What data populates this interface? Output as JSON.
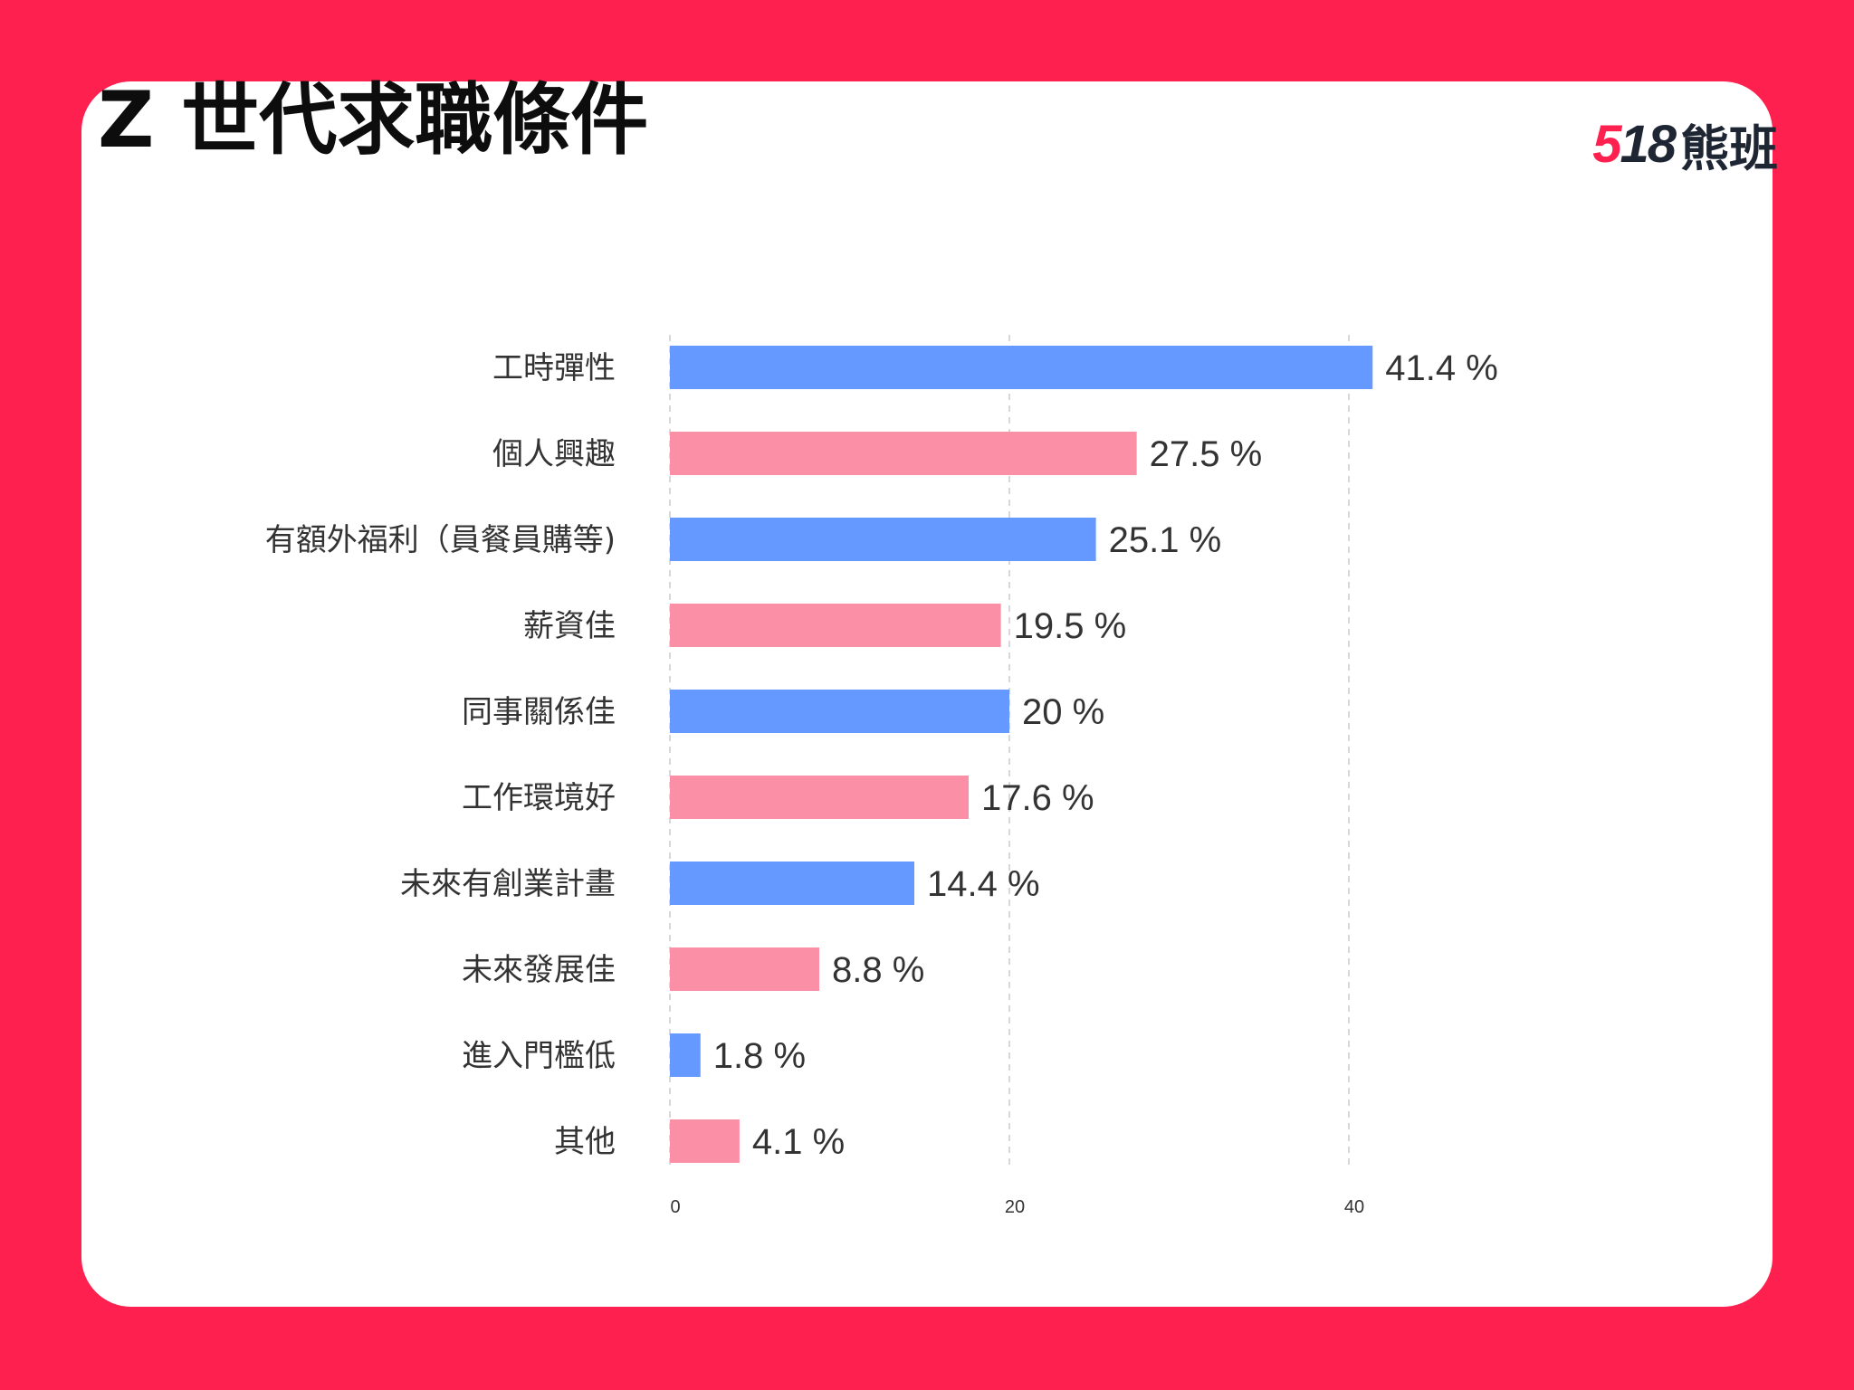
{
  "title": "Z 世代求職條件",
  "logo": {
    "digits_accent": "5",
    "digits_rest": "18",
    "text": "熊班"
  },
  "colors": {
    "background": "#fe204f",
    "blue": "#6699ff",
    "pink": "#fb8fa6",
    "grid": "#cccccc"
  },
  "chart_data": {
    "type": "bar",
    "orientation": "horizontal",
    "categories": [
      "工時彈性",
      "個人興趣",
      "有額外福利（員餐員購等)",
      "薪資佳",
      "同事關係佳",
      "工作環境好",
      "未來有創業計畫",
      "未來發展佳",
      "進入門檻低",
      "其他"
    ],
    "values": [
      41.4,
      27.5,
      25.1,
      19.5,
      20,
      17.6,
      14.4,
      8.8,
      1.8,
      4.1
    ],
    "value_labels": [
      "41.4 %",
      "27.5 %",
      "25.1 %",
      "19.5 %",
      "20 %",
      "17.6 %",
      "14.4 %",
      "8.8 %",
      "1.8 %",
      "4.1 %"
    ],
    "bar_colors": [
      "#6699ff",
      "#fb8fa6",
      "#6699ff",
      "#fb8fa6",
      "#6699ff",
      "#fb8fa6",
      "#6699ff",
      "#fb8fa6",
      "#6699ff",
      "#fb8fa6"
    ],
    "xticks": [
      0,
      20,
      40
    ],
    "xlim": [
      0,
      42
    ],
    "grid": "vertical dashed",
    "legend": "none"
  }
}
